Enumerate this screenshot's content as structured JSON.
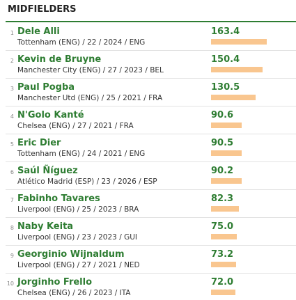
{
  "title": "MIDFIELDERS",
  "rows": [
    {
      "rank": 1,
      "name": "Dele Alli",
      "details": "Tottenham (ENG) / 22 / 2024 / ENG",
      "value": 163.4
    },
    {
      "rank": 2,
      "name": "Kevin de Bruyne",
      "details": "Manchester City (ENG) / 27 / 2023 / BEL",
      "value": 150.4
    },
    {
      "rank": 3,
      "name": "Paul Pogba",
      "details": "Manchester Utd (ENG) / 25 / 2021 / FRA",
      "value": 130.5
    },
    {
      "rank": 4,
      "name": "N'Golo Kanté",
      "details": "Chelsea (ENG) / 27 / 2021 / FRA",
      "value": 90.6
    },
    {
      "rank": 5,
      "name": "Eric Dier",
      "details": "Tottenham (ENG) / 24 / 2021 / ENG",
      "value": 90.5
    },
    {
      "rank": 6,
      "name": "Saúl Ñíguez",
      "details": "Atlético Madrid (ESP) / 23 / 2026 / ESP",
      "value": 90.2
    },
    {
      "rank": 7,
      "name": "Fabinho Tavares",
      "details": "Liverpool (ENG) / 25 / 2023 / BRA",
      "value": 82.3
    },
    {
      "rank": 8,
      "name": "Naby Keita",
      "details": "Liverpool (ENG) / 23 / 2023 / GUI",
      "value": 75,
      "value_label": "75.0"
    },
    {
      "rank": 9,
      "name": "Georginio Wijnaldum",
      "details": "Liverpool (ENG) / 27 / 2021 / NED",
      "value": 73.2
    },
    {
      "rank": 10,
      "name": "Jorginho Frello",
      "details": "Chelsea (ENG) / 26 / 2023 / ITA",
      "value": 72,
      "value_label": "72.0"
    }
  ]
}
